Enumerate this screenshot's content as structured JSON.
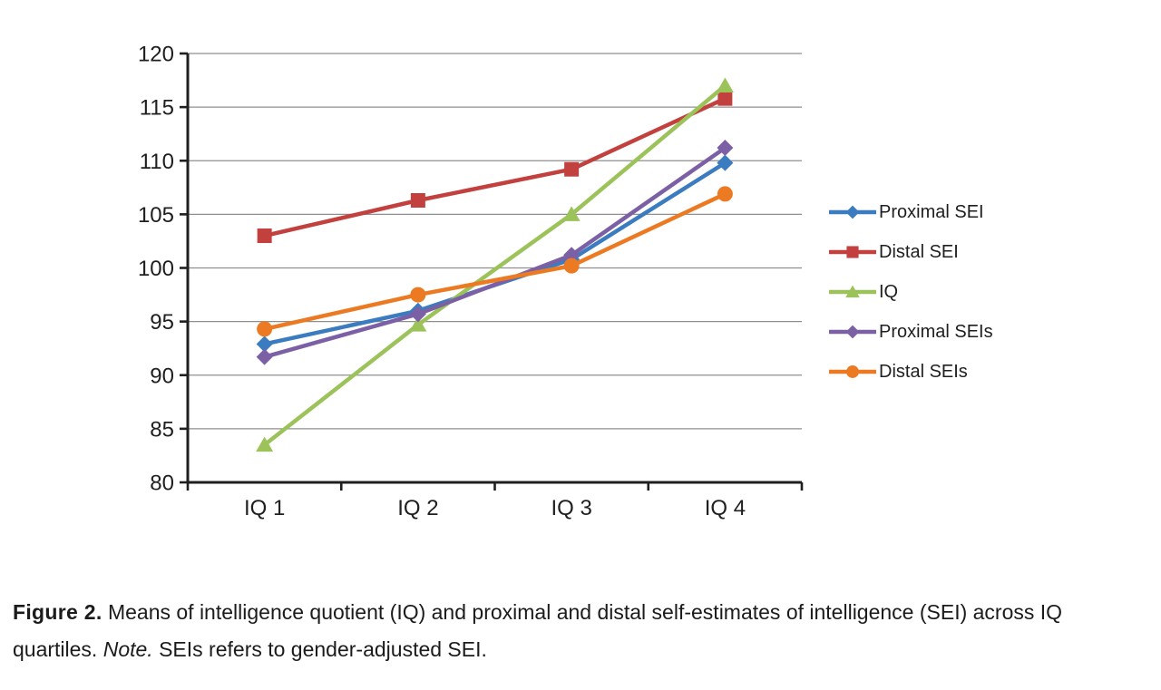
{
  "chart_data": {
    "type": "line",
    "categories": [
      "IQ 1",
      "IQ 2",
      "IQ 3",
      "IQ 4"
    ],
    "series": [
      {
        "name": "Proximal SEI",
        "marker": "diamond",
        "color": "#3B7BBF",
        "values": [
          92.9,
          96.0,
          100.8,
          109.8
        ]
      },
      {
        "name": "Distal SEI",
        "marker": "square",
        "color": "#C2413E",
        "values": [
          103.0,
          106.3,
          109.2,
          115.8
        ]
      },
      {
        "name": "IQ",
        "marker": "triangle",
        "color": "#9CC25A",
        "values": [
          83.5,
          94.7,
          105.0,
          117.0
        ]
      },
      {
        "name": "Proximal SEIs",
        "marker": "diamond",
        "color": "#7C60A5",
        "values": [
          91.7,
          95.7,
          101.2,
          111.2
        ]
      },
      {
        "name": "Distal SEIs",
        "marker": "circle",
        "color": "#EB7A23",
        "values": [
          94.3,
          97.5,
          100.2,
          106.9
        ]
      }
    ],
    "title": "",
    "xlabel": "",
    "ylabel": "",
    "ylim": [
      80,
      120
    ],
    "y_ticks": [
      120,
      115,
      110,
      105,
      100,
      95,
      90,
      85,
      80
    ],
    "grid": true,
    "legend_position": "right",
    "axis_color": "#1f1f1f",
    "grid_color": "#8f8f8f"
  },
  "caption": {
    "figure_label": "Figure 2.",
    "body_1": " Means of intelligence quotient (IQ) and proximal and distal self-estimates of intelligence (SEI) across IQ quartiles. ",
    "note_label": "Note.",
    "body_2": " SEIs refers to gender-adjusted SEI."
  }
}
